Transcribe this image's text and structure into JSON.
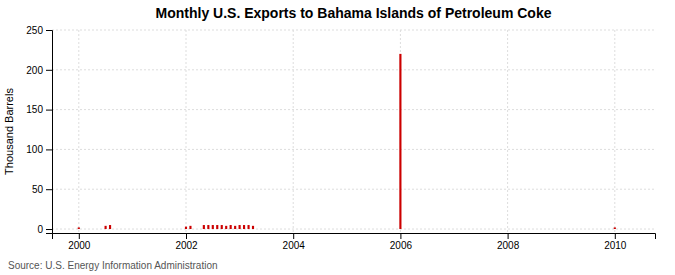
{
  "chart_data": {
    "type": "bar",
    "title": "Monthly U.S. Exports to Bahama Islands of Petroleum Coke",
    "ylabel": "Thousand Barrels",
    "annotations": [
      "Source: U.S. Energy Information Administration"
    ],
    "color": "#cc0000",
    "grid": true,
    "xlim": [
      1999.5,
      2010.75
    ],
    "ylim": [
      -5,
      250
    ],
    "xticks": [
      2000,
      2002,
      2004,
      2006,
      2008,
      2010
    ],
    "yticks": [
      0,
      50,
      100,
      150,
      200,
      250
    ],
    "x": [
      2000.0,
      2000.083,
      2000.167,
      2000.25,
      2000.333,
      2000.417,
      2000.5,
      2000.583,
      2000.667,
      2000.75,
      2000.833,
      2000.917,
      2001.0,
      2001.083,
      2001.167,
      2001.25,
      2001.333,
      2001.417,
      2001.5,
      2001.583,
      2001.667,
      2001.75,
      2001.833,
      2001.917,
      2002.0,
      2002.083,
      2002.167,
      2002.25,
      2002.333,
      2002.417,
      2002.5,
      2002.583,
      2002.667,
      2002.75,
      2002.833,
      2002.917,
      2003.0,
      2003.083,
      2003.167,
      2003.25,
      2003.333,
      2003.417,
      2003.5,
      2003.583,
      2003.667,
      2003.75,
      2003.833,
      2003.917,
      2004.0,
      2004.083,
      2004.167,
      2004.25,
      2004.333,
      2004.417,
      2004.5,
      2004.583,
      2004.667,
      2004.75,
      2004.833,
      2004.917,
      2005.0,
      2005.083,
      2005.167,
      2005.25,
      2005.333,
      2005.417,
      2005.5,
      2005.583,
      2005.667,
      2005.75,
      2005.833,
      2005.917,
      2006.0,
      2006.083,
      2006.167,
      2006.25,
      2006.333,
      2006.417,
      2006.5,
      2006.583,
      2006.667,
      2006.75,
      2006.833,
      2006.917,
      2007.0,
      2007.083,
      2007.167,
      2007.25,
      2007.333,
      2007.417,
      2007.5,
      2007.583,
      2007.667,
      2007.75,
      2007.833,
      2007.917,
      2008.0,
      2008.083,
      2008.167,
      2008.25,
      2008.333,
      2008.417,
      2008.5,
      2008.583,
      2008.667,
      2008.75,
      2008.833,
      2008.917,
      2009.0,
      2009.083,
      2009.167,
      2009.25,
      2009.333,
      2009.417,
      2009.5,
      2009.583,
      2009.667,
      2009.75,
      2009.833,
      2009.917,
      2010.0,
      2010.083,
      2010.167
    ],
    "values": [
      2,
      0,
      0,
      0,
      0,
      0,
      4,
      5,
      0,
      0,
      0,
      0,
      0,
      0,
      0,
      0,
      0,
      0,
      0,
      0,
      0,
      0,
      0,
      0,
      3,
      4,
      0,
      0,
      5,
      5,
      5,
      5,
      5,
      4,
      5,
      4,
      5,
      5,
      5,
      4,
      0,
      0,
      0,
      0,
      0,
      0,
      0,
      0,
      0,
      0,
      0,
      0,
      0,
      0,
      0,
      0,
      0,
      0,
      0,
      0,
      0,
      0,
      0,
      0,
      0,
      0,
      0,
      0,
      0,
      0,
      0,
      0,
      220,
      0,
      0,
      0,
      0,
      0,
      0,
      0,
      0,
      0,
      0,
      0,
      0,
      0,
      0,
      0,
      0,
      0,
      0,
      0,
      0,
      0,
      0,
      0,
      0,
      0,
      0,
      0,
      0,
      0,
      0,
      0,
      0,
      0,
      0,
      0,
      0,
      0,
      0,
      0,
      0,
      0,
      0,
      0,
      0,
      0,
      0,
      0,
      2,
      0,
      0
    ]
  }
}
